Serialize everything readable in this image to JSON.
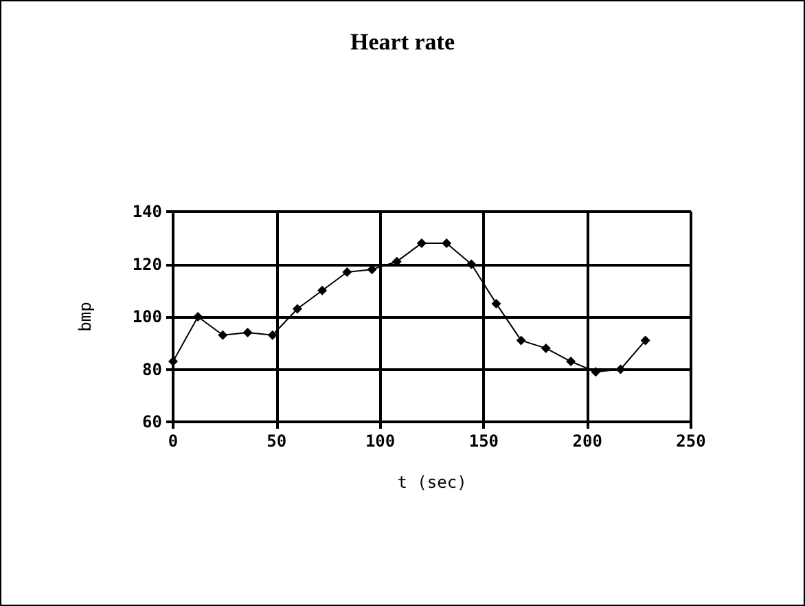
{
  "chart_data": {
    "type": "line",
    "title": "Heart rate",
    "xlabel": "t (sec)",
    "ylabel": "bmp",
    "x": [
      0,
      12,
      24,
      36,
      48,
      60,
      72,
      84,
      96,
      108,
      120,
      132,
      144,
      156,
      168,
      180,
      192,
      204,
      216,
      228
    ],
    "series": [
      {
        "color": "#000000",
        "values": [
          83,
          100,
          93,
          94,
          93,
          103,
          110,
          117,
          118,
          121,
          128,
          128,
          120,
          105,
          91,
          88,
          83,
          79,
          80,
          91
        ]
      }
    ],
    "xlim": [
      0,
      250
    ],
    "xticks": [
      0,
      50,
      100,
      150,
      200,
      250
    ],
    "ylim": [
      60,
      140
    ],
    "yticks": [
      60,
      80,
      100,
      120,
      140
    ],
    "grid": true,
    "marker": "diamond",
    "line_style": "solid"
  }
}
